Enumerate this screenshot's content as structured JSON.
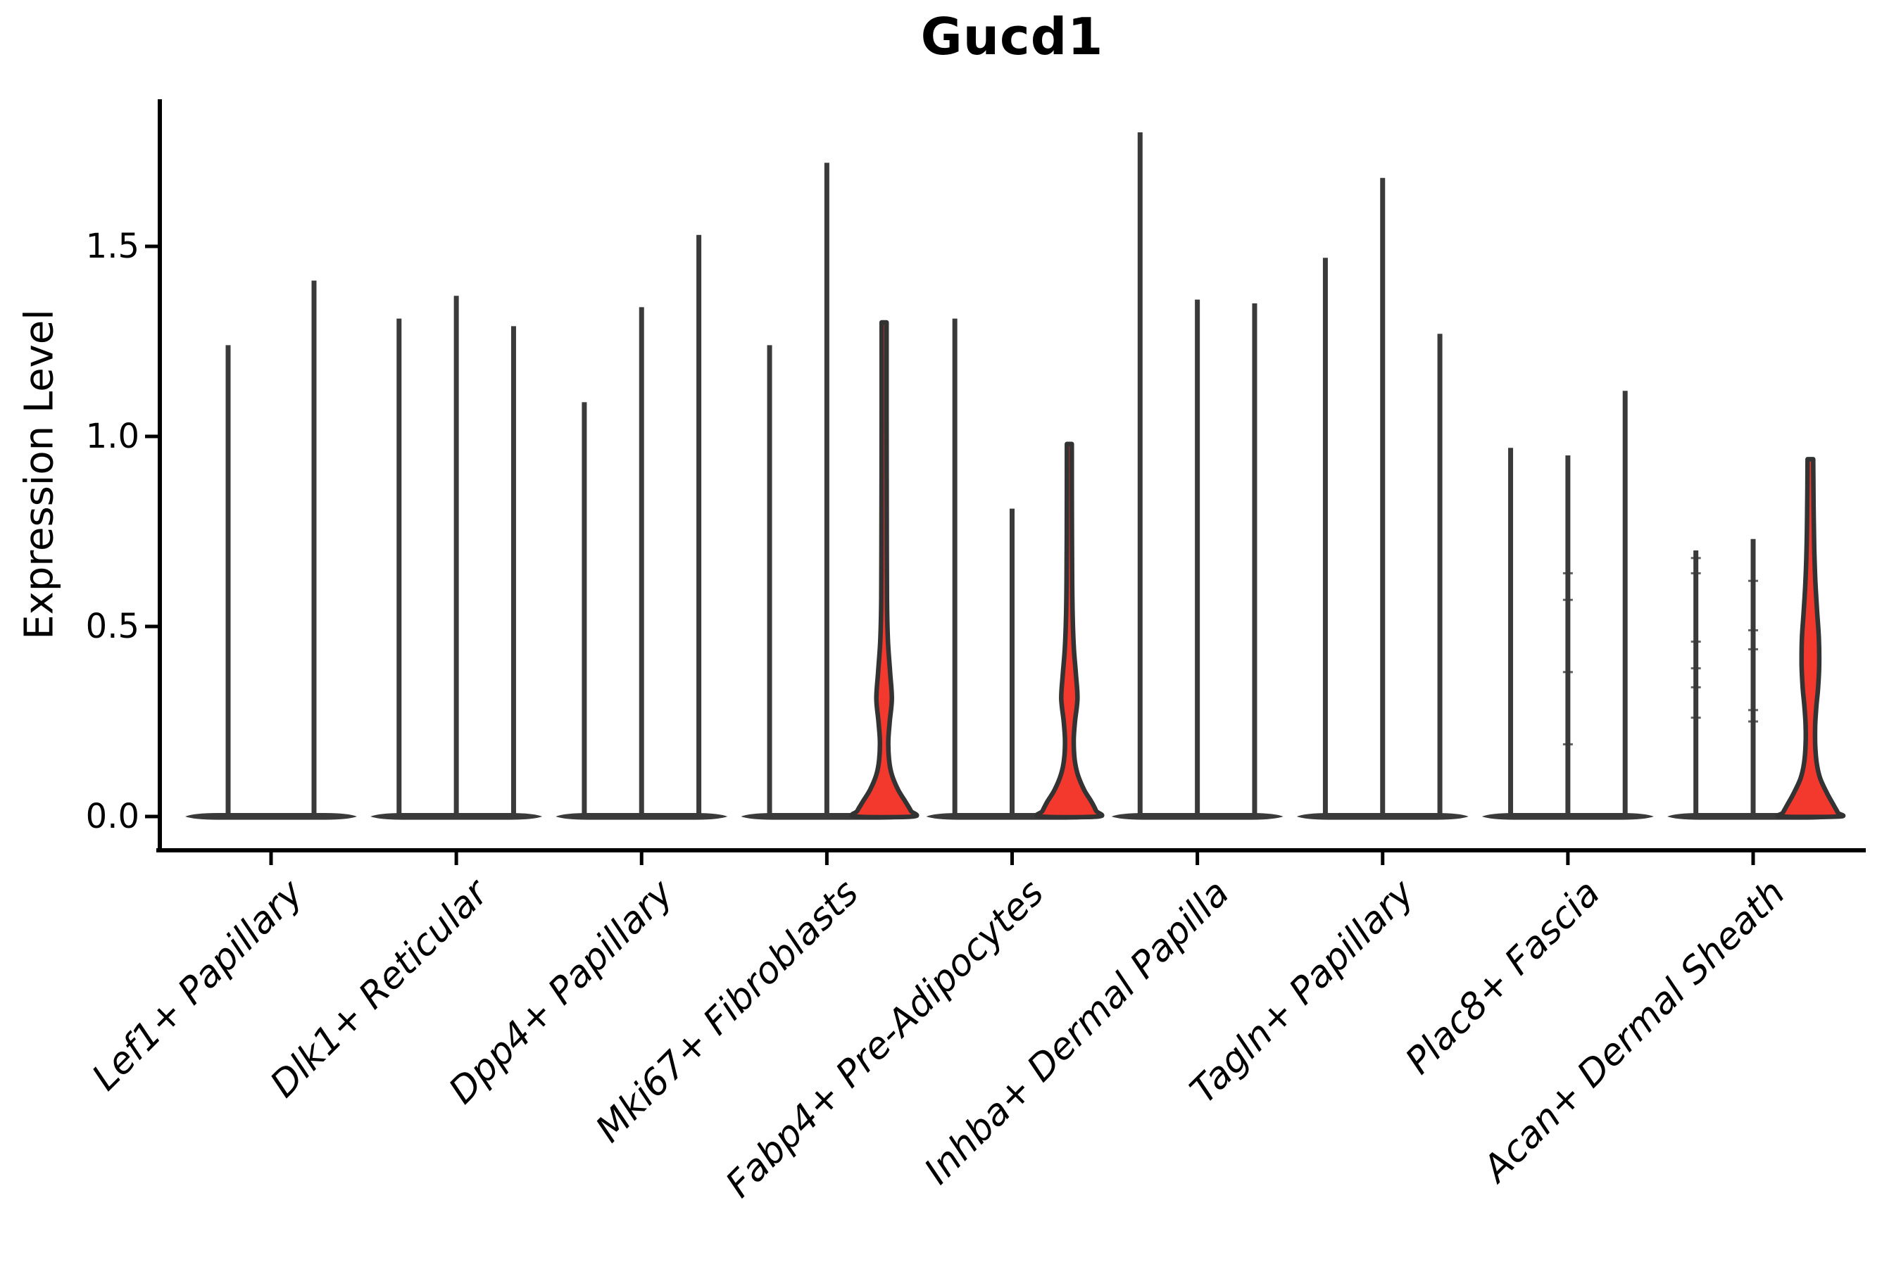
{
  "chart_data": {
    "type": "violin",
    "title": "Gucd1",
    "ylabel": "Expression Level",
    "xlabel": "",
    "ylim": [
      -0.09,
      1.89
    ],
    "yticks": [
      0.0,
      0.5,
      1.0,
      1.5
    ],
    "ytick_labels": [
      "0.0",
      "0.5",
      "1.0",
      "1.5"
    ],
    "grid": false,
    "legend": "none",
    "categories": [
      "Lef1+ Papillary",
      "Dlk1+ Reticular",
      "Dpp4+ Papillary",
      "Mki67+ Fibroblasts",
      "Fabp4+ Pre-Adipocytes",
      "Inhba+ Dermal Papilla",
      "Tagln+ Papillary",
      "Plac8+ Fascia",
      "Acan+ Dermal Sheath"
    ],
    "groups": [
      {
        "category": "Lef1+ Papillary",
        "violins": [
          {
            "max": 1.24
          },
          {
            "max": 1.41
          }
        ]
      },
      {
        "category": "Dlk1+ Reticular",
        "violins": [
          {
            "max": 1.31
          },
          {
            "max": 1.37
          },
          {
            "max": 1.29
          }
        ]
      },
      {
        "category": "Dpp4+ Papillary",
        "violins": [
          {
            "max": 1.09
          },
          {
            "max": 1.34
          },
          {
            "max": 1.53
          }
        ]
      },
      {
        "category": "Mki67+ Fibroblasts",
        "violins": [
          {
            "max": 1.24
          },
          {
            "max": 1.72
          },
          {
            "max": 1.3,
            "highlighted": true,
            "profile": [
              [
                1.3,
                3.5
              ],
              [
                1.05,
                3.5
              ],
              [
                0.7,
                3.8
              ],
              [
                0.55,
                4.2
              ],
              [
                0.46,
                5.5
              ],
              [
                0.38,
                8.5
              ],
              [
                0.31,
                11
              ],
              [
                0.25,
                8
              ],
              [
                0.2,
                6
              ],
              [
                0.15,
                7
              ],
              [
                0.11,
                11
              ],
              [
                0.07,
                20
              ],
              [
                0.04,
                30
              ],
              [
                0.015,
                38
              ],
              [
                0,
                41
              ]
            ]
          }
        ]
      },
      {
        "category": "Fabp4+ Pre-Adipocytes",
        "violins": [
          {
            "max": 1.31
          },
          {
            "max": 0.81
          },
          {
            "max": 0.98,
            "highlighted": true,
            "profile": [
              [
                0.98,
                3.5
              ],
              [
                0.8,
                3.6
              ],
              [
                0.62,
                4
              ],
              [
                0.52,
                4.8
              ],
              [
                0.44,
                6.5
              ],
              [
                0.37,
                9.5
              ],
              [
                0.31,
                11.5
              ],
              [
                0.25,
                8
              ],
              [
                0.2,
                6.2
              ],
              [
                0.15,
                7.5
              ],
              [
                0.11,
                12
              ],
              [
                0.07,
                21
              ],
              [
                0.04,
                31
              ],
              [
                0.015,
                38
              ],
              [
                0,
                41
              ]
            ]
          }
        ]
      },
      {
        "category": "Inhba+ Dermal Papilla",
        "violins": [
          {
            "max": 1.8
          },
          {
            "max": 1.36
          },
          {
            "max": 1.35
          }
        ]
      },
      {
        "category": "Tagln+ Papillary",
        "violins": [
          {
            "max": 1.47
          },
          {
            "max": 1.68
          },
          {
            "max": 1.27
          }
        ]
      },
      {
        "category": "Plac8+ Fascia",
        "violins": [
          {
            "max": 0.97
          },
          {
            "max": 0.95,
            "points": [
              0.64,
              0.57,
              0.38,
              0.19
            ]
          },
          {
            "max": 1.12
          }
        ]
      },
      {
        "category": "Acan+ Dermal Sheath",
        "violins": [
          {
            "max": 0.7,
            "points": [
              0.68,
              0.64,
              0.46,
              0.39,
              0.34,
              0.26
            ]
          },
          {
            "max": 0.73,
            "points": [
              0.62,
              0.49,
              0.44,
              0.28,
              0.25
            ]
          },
          {
            "max": 0.94,
            "highlighted": true,
            "profile": [
              [
                0.94,
                4
              ],
              [
                0.82,
                4.5
              ],
              [
                0.7,
                5.5
              ],
              [
                0.62,
                7
              ],
              [
                0.54,
                9.5
              ],
              [
                0.47,
                12
              ],
              [
                0.4,
                12.5
              ],
              [
                0.34,
                11
              ],
              [
                0.29,
                8.5
              ],
              [
                0.24,
                6.8
              ],
              [
                0.19,
                6.8
              ],
              [
                0.14,
                9
              ],
              [
                0.1,
                14
              ],
              [
                0.06,
                24
              ],
              [
                0.03,
                33
              ],
              [
                0.01,
                39
              ],
              [
                0,
                41
              ]
            ]
          }
        ]
      }
    ],
    "colors": {
      "highlight_fill": "#F3392D",
      "violin_outline": "#333333",
      "spike": "#3A3A3A",
      "axis": "#000000",
      "text": "#000000"
    }
  }
}
